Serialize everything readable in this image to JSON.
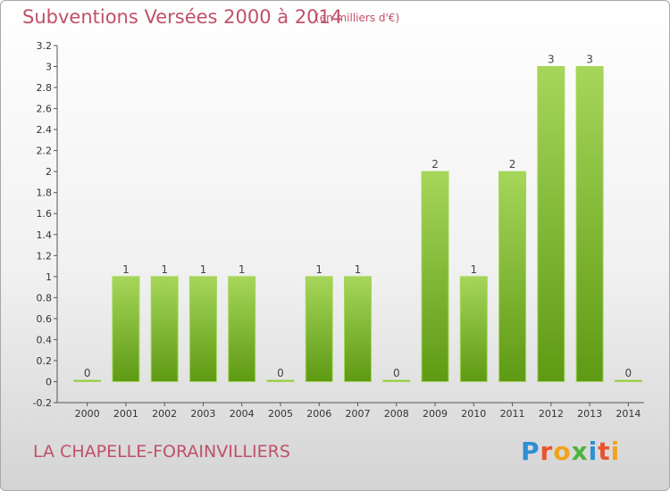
{
  "title": "Subventions Versées 2000 à 2014",
  "subtitle": "(en milliers d'€)",
  "commune": "LA CHAPELLE-FORAINVILLIERS",
  "logo": [
    "P",
    "r",
    "o",
    "x",
    "i",
    "t",
    "i"
  ],
  "colors": {
    "bar_light": "#a6d65a",
    "bar_dark": "#5e9a14",
    "title": "#c0506a"
  },
  "chart_data": {
    "type": "bar",
    "categories": [
      "2000",
      "2001",
      "2002",
      "2003",
      "2004",
      "2005",
      "2006",
      "2007",
      "2008",
      "2009",
      "2010",
      "2011",
      "2012",
      "2013",
      "2014"
    ],
    "values": [
      0.01,
      1,
      1,
      1,
      1,
      0.01,
      1,
      1,
      0.01,
      2,
      1,
      2,
      3,
      3,
      0.01
    ],
    "data_labels": [
      "0",
      "1",
      "1",
      "1",
      "1",
      "0",
      "1",
      "1",
      "0",
      "2",
      "1",
      "2",
      "3",
      "3",
      "0"
    ],
    "ylim": [
      -0.2,
      3.2
    ],
    "yticks": [
      -0.2,
      0,
      0.2,
      0.4,
      0.6,
      0.8,
      1,
      1.2,
      1.4,
      1.6,
      1.8,
      2,
      2.2,
      2.4,
      2.6,
      2.8,
      3,
      3.2
    ],
    "ytick_labels": [
      "-0.2",
      "0",
      "0.2",
      "0.4",
      "0.6",
      "0.8",
      "1",
      "1.2",
      "1.4",
      "1.6",
      "1.8",
      "2",
      "2.2",
      "2.4",
      "2.6",
      "2.8",
      "3",
      "3.2"
    ],
    "xlabel": "",
    "ylabel": "",
    "grid": false
  }
}
